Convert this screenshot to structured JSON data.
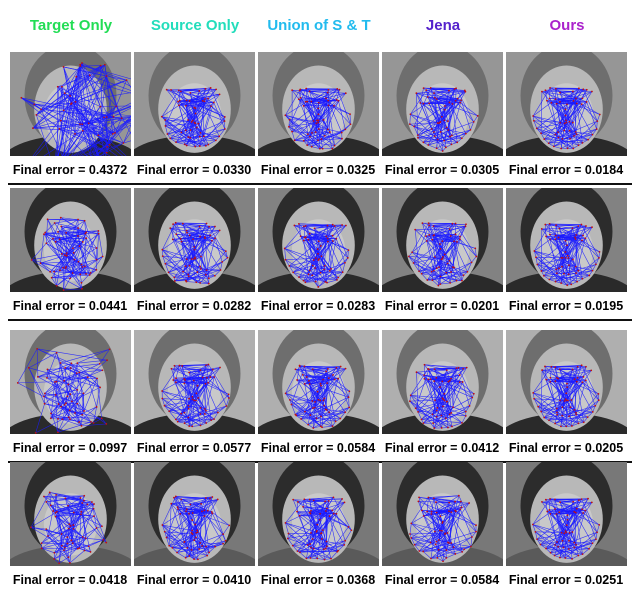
{
  "columns": [
    {
      "label": "Target Only",
      "color": "#22dd55"
    },
    {
      "label": "Source Only",
      "color": "#22ddbb"
    },
    {
      "label": "Union of S & T",
      "color": "#22bbee"
    },
    {
      "label": "Jena",
      "color": "#5522cc"
    },
    {
      "label": "Ours",
      "color": "#aa22cc"
    }
  ],
  "rows": [
    {
      "errors": [
        "Final error = 0.4372",
        "Final error = 0.0330",
        "Final error = 0.0325",
        "Final error = 0.0305",
        "Final error = 0.0184"
      ]
    },
    {
      "errors": [
        "Final error = 0.0441",
        "Final error = 0.0282",
        "Final error = 0.0283",
        "Final error = 0.0201",
        "Final error =  0.0195"
      ]
    },
    {
      "errors": [
        "Final error = 0.0997",
        "Final error = 0.0577",
        "Final error = 0.0584",
        "Final error = 0.0412",
        "Final error = 0.0205"
      ]
    },
    {
      "errors": [
        "Final error = 0.0418",
        "Final error = 0.0410",
        "Final error = 0.0368",
        "Final error = 0.0584",
        "Final error = 0.0251"
      ]
    }
  ],
  "colors": {
    "mesh": "#1a1aff",
    "landmark": "#c01010"
  }
}
